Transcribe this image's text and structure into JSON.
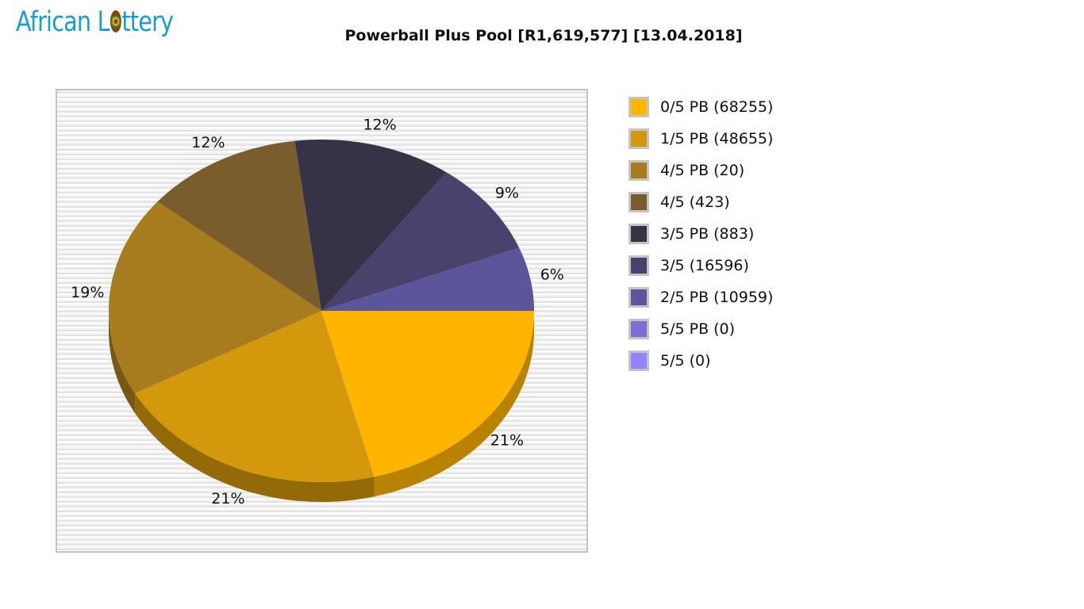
{
  "header": {
    "logo_text_left": "African L",
    "logo_text_right": "ttery",
    "title": "Powerball Plus Pool [R1,619,577] [13.04.2018]"
  },
  "legend": {
    "items": [
      {
        "label": "0/5 PB (68255)",
        "color": "#ffb400"
      },
      {
        "label": "1/5 PB (48655)",
        "color": "#d4980d"
      },
      {
        "label": "4/5 PB (20)",
        "color": "#a67c1e"
      },
      {
        "label": "4/5 (423)",
        "color": "#7a5d2c"
      },
      {
        "label": "3/5 PB (883)",
        "color": "#363347"
      },
      {
        "label": "3/5 (16596)",
        "color": "#48426d"
      },
      {
        "label": "2/5 PB (10959)",
        "color": "#5c559b"
      },
      {
        "label": "5/5 PB (0)",
        "color": "#7b6fd4"
      },
      {
        "label": "5/5 (0)",
        "color": "#9184ff"
      }
    ]
  },
  "chart_data": {
    "type": "pie",
    "title": "Powerball Plus Pool [R1,619,577] [13.04.2018]",
    "style": "3d",
    "legend_position": "right",
    "categories": [
      "0/5 PB (68255)",
      "1/5 PB (48655)",
      "4/5 PB (20)",
      "4/5 (423)",
      "3/5 PB (883)",
      "3/5 (16596)",
      "2/5 PB (10959)",
      "5/5 PB (0)",
      "5/5 (0)"
    ],
    "values": [
      21,
      21,
      19,
      12,
      12,
      9,
      6,
      0,
      0
    ],
    "labels": [
      "21%",
      "21%",
      "19%",
      "12%",
      "12%",
      "9%",
      "6%",
      "",
      ""
    ],
    "colors": [
      "#ffb400",
      "#d4980d",
      "#a67c1e",
      "#7a5d2c",
      "#363347",
      "#48426d",
      "#5c559b",
      "#7b6fd4",
      "#9184ff"
    ],
    "side_colors": [
      "#b98200",
      "#936a07",
      "#775916",
      "#574220",
      "#262433",
      "#33304e",
      "#423d70",
      "#584fa0",
      "#685ec0"
    ]
  }
}
